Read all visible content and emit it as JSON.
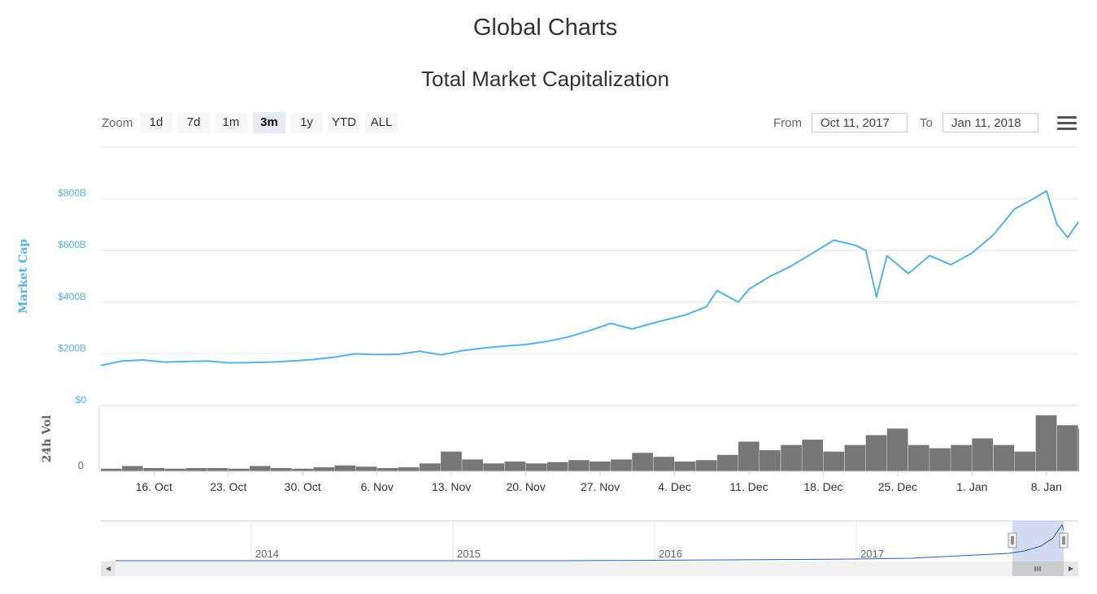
{
  "page": {
    "title": "Global Charts"
  },
  "toolbar": {
    "zoom_label": "Zoom",
    "zoom_buttons": [
      "1d",
      "7d",
      "1m",
      "3m",
      "1y",
      "YTD",
      "ALL"
    ],
    "active_zoom": "3m",
    "from_label": "From",
    "from_value": "Oct 11, 2017",
    "to_label": "To",
    "to_value": "Jan 11, 2018",
    "menu_icon": "hamburger-menu-icon"
  },
  "colors": {
    "market_cap_line": "#55b2e4",
    "volume_bar": "#777777",
    "navigator_line": "#335cad",
    "navigator_mask": "#c7d2ec"
  },
  "chart_data": {
    "type": "line",
    "title": "Total Market Capitalization",
    "ylabel": "Market Cap",
    "ylabel2": "24h Vol",
    "y_ticks": [
      "$0",
      "$200B",
      "$400B",
      "$600B",
      "$800B"
    ],
    "ylim": [
      0,
      1000
    ],
    "y_unit": "billion USD",
    "y2_ticks": [
      "0",
      "$0"
    ],
    "x_ticks": [
      "16. Oct",
      "23. Oct",
      "30. Oct",
      "6. Nov",
      "13. Nov",
      "20. Nov",
      "27. Nov",
      "4. Dec",
      "11. Dec",
      "18. Dec",
      "25. Dec",
      "1. Jan",
      "8. Jan"
    ],
    "xlim": [
      "2017-10-11",
      "2018-01-11"
    ],
    "grid": true,
    "series": [
      {
        "name": "Market Cap",
        "x": [
          "2017-10-11",
          "2017-10-13",
          "2017-10-15",
          "2017-10-17",
          "2017-10-19",
          "2017-10-21",
          "2017-10-23",
          "2017-10-25",
          "2017-10-27",
          "2017-10-29",
          "2017-10-31",
          "2017-11-02",
          "2017-11-04",
          "2017-11-06",
          "2017-11-08",
          "2017-11-10",
          "2017-11-12",
          "2017-11-14",
          "2017-11-16",
          "2017-11-18",
          "2017-11-20",
          "2017-11-22",
          "2017-11-24",
          "2017-11-26",
          "2017-11-28",
          "2017-11-30",
          "2017-12-01",
          "2017-12-03",
          "2017-12-05",
          "2017-12-07",
          "2017-12-08",
          "2017-12-10",
          "2017-12-11",
          "2017-12-13",
          "2017-12-15",
          "2017-12-17",
          "2017-12-19",
          "2017-12-21",
          "2017-12-22",
          "2017-12-23",
          "2017-12-24",
          "2017-12-26",
          "2017-12-28",
          "2017-12-30",
          "2018-01-01",
          "2018-01-03",
          "2018-01-05",
          "2018-01-07",
          "2018-01-08",
          "2018-01-09",
          "2018-01-10",
          "2018-01-11"
        ],
        "values": [
          155,
          172,
          176,
          168,
          170,
          172,
          165,
          166,
          168,
          172,
          178,
          187,
          200,
          197,
          198,
          210,
          196,
          212,
          222,
          230,
          236,
          248,
          265,
          290,
          318,
          296,
          308,
          330,
          350,
          382,
          445,
          400,
          450,
          500,
          540,
          590,
          640,
          620,
          600,
          420,
          580,
          510,
          580,
          545,
          590,
          660,
          760,
          805,
          830,
          700,
          650,
          710
        ]
      },
      {
        "name": "24h Vol",
        "x": [
          "2017-10-11",
          "2017-10-13",
          "2017-10-15",
          "2017-10-17",
          "2017-10-19",
          "2017-10-21",
          "2017-10-23",
          "2017-10-25",
          "2017-10-27",
          "2017-10-29",
          "2017-10-31",
          "2017-11-02",
          "2017-11-04",
          "2017-11-06",
          "2017-11-08",
          "2017-11-10",
          "2017-11-12",
          "2017-11-14",
          "2017-11-16",
          "2017-11-18",
          "2017-11-20",
          "2017-11-22",
          "2017-11-24",
          "2017-11-26",
          "2017-11-28",
          "2017-11-30",
          "2017-12-02",
          "2017-12-04",
          "2017-12-06",
          "2017-12-08",
          "2017-12-10",
          "2017-12-12",
          "2017-12-14",
          "2017-12-16",
          "2017-12-18",
          "2017-12-20",
          "2017-12-22",
          "2017-12-24",
          "2017-12-26",
          "2017-12-28",
          "2017-12-30",
          "2018-01-01",
          "2018-01-03",
          "2018-01-05",
          "2018-01-07",
          "2018-01-09",
          "2018-01-11"
        ],
        "values": [
          4,
          8,
          5,
          4,
          5,
          5,
          4,
          8,
          5,
          4,
          6,
          9,
          7,
          5,
          6,
          12,
          30,
          18,
          12,
          15,
          12,
          14,
          17,
          15,
          18,
          28,
          22,
          15,
          17,
          25,
          45,
          32,
          40,
          48,
          30,
          40,
          55,
          65,
          40,
          35,
          40,
          50,
          40,
          30,
          85,
          70,
          65
        ]
      }
    ],
    "navigator": {
      "x_ticks": [
        "2014",
        "2015",
        "2016",
        "2017"
      ]
    }
  }
}
